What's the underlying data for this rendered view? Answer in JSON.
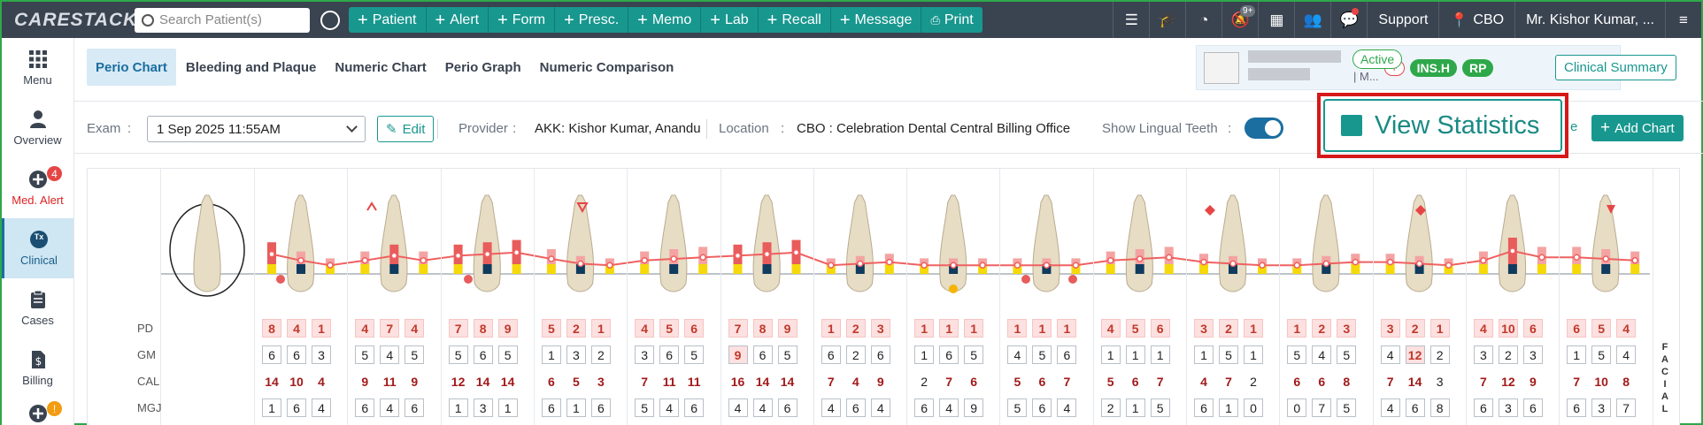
{
  "app": {
    "logo": "CARESTACK"
  },
  "search": {
    "placeholder": "Search Patient(s)"
  },
  "quick_actions": [
    "Patient",
    "Alert",
    "Form",
    "Presc.",
    "Memo",
    "Lab",
    "Recall",
    "Message"
  ],
  "print_label": "Print",
  "topbar_right": {
    "notif_badge": "9+",
    "support": "Support",
    "location": "CBO",
    "user": "Mr. Kishor Kumar, ..."
  },
  "sidebar": [
    {
      "label": "Menu"
    },
    {
      "label": "Overview"
    },
    {
      "label": "Med. Alert",
      "badge": "4"
    },
    {
      "label": "Clinical",
      "icon_text": "Tx"
    },
    {
      "label": "Cases"
    },
    {
      "label": "Billing"
    },
    {
      "label": "",
      "badge": "!"
    }
  ],
  "tabs": [
    "Perio Chart",
    "Bleeding and Plaque",
    "Numeric Chart",
    "Perio Graph",
    "Numeric Comparison"
  ],
  "patient": {
    "status": "Active",
    "name_suffix": "| M...",
    "plus": "+",
    "tags": [
      "INS.H",
      "RP"
    ],
    "clinical_summary": "Clinical Summary"
  },
  "exam": {
    "exam_label": "Exam",
    "exam_value": "1 Sep 2025 11:55AM",
    "edit_label": "Edit",
    "provider_label": "Provider",
    "provider_value": "AKK: Kishor Kumar, Anandu",
    "location_label": "Location",
    "location_value": "CBO : Celebration Dental Central Billing Office",
    "lingual_label": "Show Lingual Teeth",
    "lingual_on": true,
    "view_stats_label": "View Statistics",
    "clipped_text": "e",
    "add_chart_label": "Add Chart"
  },
  "chart": {
    "row_labels": [
      "PD",
      "GM",
      "CAL",
      "MGJ"
    ],
    "side_label": [
      "F",
      "A",
      "C",
      "I",
      "A",
      "L"
    ],
    "pd": [
      [
        "8",
        "4",
        "1"
      ],
      [
        "4",
        "7",
        "4"
      ],
      [
        "7",
        "8",
        "9"
      ],
      [
        "5",
        "2",
        "1"
      ],
      [
        "4",
        "5",
        "6"
      ],
      [
        "7",
        "8",
        "9"
      ],
      [
        "1",
        "2",
        "3"
      ],
      [
        "1",
        "1",
        "1"
      ],
      [
        "1",
        "1",
        "1"
      ],
      [
        "4",
        "5",
        "6"
      ],
      [
        "3",
        "2",
        "1"
      ],
      [
        "1",
        "2",
        "3"
      ],
      [
        "3",
        "2",
        "1"
      ],
      [
        "4",
        "10",
        "6"
      ],
      [
        "6",
        "5",
        "4"
      ]
    ],
    "gm": [
      [
        "6",
        "6",
        "3"
      ],
      [
        "5",
        "4",
        "5"
      ],
      [
        "5",
        "6",
        "5"
      ],
      [
        "1",
        "3",
        "2"
      ],
      [
        "3",
        "6",
        "5"
      ],
      [
        "9",
        "6",
        "5"
      ],
      [
        "6",
        "2",
        "6"
      ],
      [
        "1",
        "6",
        "5"
      ],
      [
        "4",
        "5",
        "6"
      ],
      [
        "1",
        "1",
        "1"
      ],
      [
        "1",
        "5",
        "1"
      ],
      [
        "5",
        "4",
        "5"
      ],
      [
        "4",
        "12",
        "2"
      ],
      [
        "3",
        "2",
        "3"
      ],
      [
        "1",
        "5",
        "4"
      ]
    ],
    "gm_highlight": [
      [],
      [],
      [],
      [],
      [],
      [
        0
      ],
      [],
      [],
      [],
      [],
      [],
      [],
      [
        1
      ],
      [],
      []
    ],
    "cal": [
      [
        "14",
        "10",
        "4"
      ],
      [
        "9",
        "11",
        "9"
      ],
      [
        "12",
        "14",
        "14"
      ],
      [
        "6",
        "5",
        "3"
      ],
      [
        "7",
        "11",
        "11"
      ],
      [
        "16",
        "14",
        "14"
      ],
      [
        "7",
        "4",
        "9"
      ],
      [
        "2",
        "7",
        "6"
      ],
      [
        "5",
        "6",
        "7"
      ],
      [
        "5",
        "6",
        "7"
      ],
      [
        "4",
        "7",
        "2"
      ],
      [
        "6",
        "6",
        "8"
      ],
      [
        "7",
        "14",
        "3"
      ],
      [
        "7",
        "12",
        "9"
      ],
      [
        "7",
        "10",
        "8"
      ]
    ],
    "cal_dark": [
      [],
      [],
      [],
      [],
      [],
      [],
      [],
      [
        0
      ],
      [],
      [],
      [
        2
      ],
      [],
      [
        2
      ],
      [],
      []
    ],
    "mgj": [
      [
        "1",
        "6",
        "4"
      ],
      [
        "6",
        "4",
        "6"
      ],
      [
        "1",
        "3",
        "1"
      ],
      [
        "6",
        "1",
        "6"
      ],
      [
        "5",
        "4",
        "6"
      ],
      [
        "4",
        "4",
        "6"
      ],
      [
        "4",
        "6",
        "4"
      ],
      [
        "6",
        "4",
        "9"
      ],
      [
        "5",
        "6",
        "4"
      ],
      [
        "2",
        "1",
        "5"
      ],
      [
        "6",
        "1",
        "0"
      ],
      [
        "0",
        "7",
        "5"
      ],
      [
        "4",
        "6",
        "8"
      ],
      [
        "6",
        "3",
        "6"
      ],
      [
        "6",
        "3",
        "7"
      ]
    ]
  },
  "colors": {
    "accent": "#18978f",
    "topbar": "#3a4350",
    "highlight": "#d61818",
    "gm_line": "#f06060",
    "plaque": "#f5d90a",
    "bleeding_bar": "#e85c5c",
    "recession": "#0f3b5e"
  }
}
